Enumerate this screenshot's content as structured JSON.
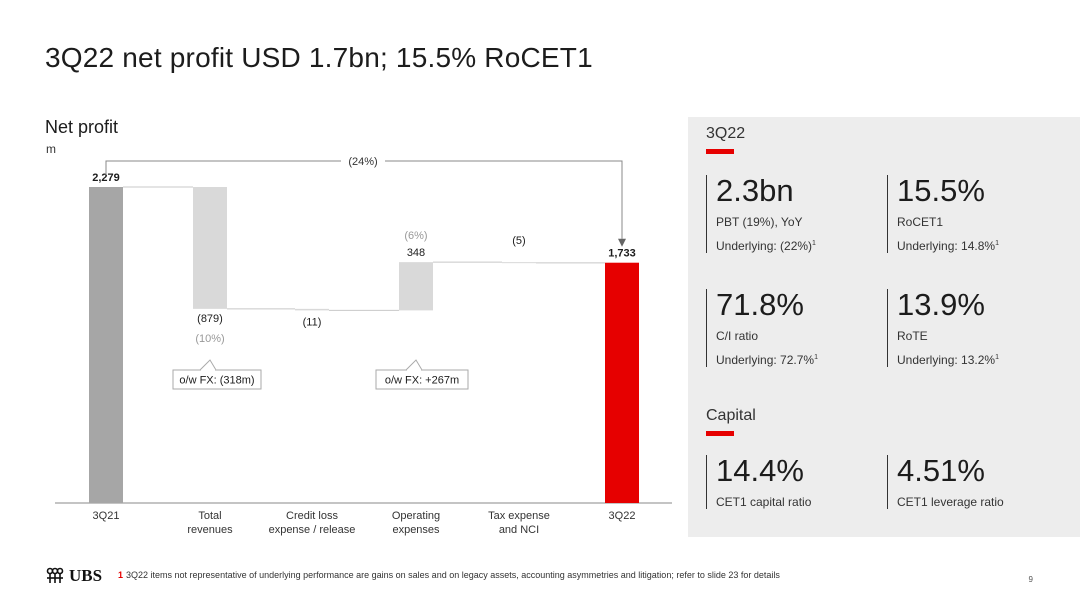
{
  "slide": {
    "title": "3Q22 net profit USD 1.7bn; 15.5% RoCET1",
    "page_number": "9",
    "logo_text": "UBS",
    "footnote_number": "1",
    "footnote_text": "3Q22 items not representative of underlying performance are gains on sales and on legacy assets, accounting asymmetries and litigation; refer to slide 23 for details"
  },
  "chart_data": {
    "type": "waterfall",
    "title": "Net profit",
    "unit": "m",
    "ylim": [
      0,
      2279
    ],
    "categories": [
      "3Q21",
      "Total revenues",
      "Credit loss expense / release",
      "Operating expenses",
      "Tax expense and NCI",
      "3Q22"
    ],
    "category_lines": [
      [
        "3Q21"
      ],
      [
        "Total",
        "revenues"
      ],
      [
        "Credit loss",
        "expense / release"
      ],
      [
        "Operating",
        "expenses"
      ],
      [
        "Tax expense",
        "and NCI"
      ],
      [
        "3Q22"
      ]
    ],
    "steps": [
      {
        "kind": "total",
        "value": 2279,
        "label": "2,279",
        "color": "#a6a6a6"
      },
      {
        "kind": "delta",
        "value": -879,
        "label": "(879)",
        "pct": "(10%)",
        "color": "#d9d9d9"
      },
      {
        "kind": "delta",
        "value": -11,
        "label": "(11)",
        "color": "#d9d9d9"
      },
      {
        "kind": "delta",
        "value": 348,
        "label": "348",
        "pct": "(6%)",
        "color": "#d9d9d9"
      },
      {
        "kind": "delta",
        "value": -5,
        "label": "(5)",
        "color": "#d9d9d9"
      },
      {
        "kind": "total",
        "value": 1733,
        "label": "1,733",
        "color": "#e60000"
      }
    ],
    "change_label": "(24%)",
    "callouts": [
      {
        "step": 1,
        "text": "o/w FX: (318m)"
      },
      {
        "step": 3,
        "text": "o/w FX: +267m"
      }
    ]
  },
  "panel": {
    "section1_title": "3Q22",
    "section2_title": "Capital",
    "accent": "#e60000",
    "kpis": [
      {
        "value": "2.3bn",
        "label": "PBT (19%), YoY",
        "sub": "Underlying: (22%)",
        "sup": "1"
      },
      {
        "value": "15.5%",
        "label": "RoCET1",
        "sub": "Underlying: 14.8%",
        "sup": "1"
      },
      {
        "value": "71.8%",
        "label": "C/I ratio",
        "sub": "Underlying: 72.7%",
        "sup": "1"
      },
      {
        "value": "13.9%",
        "label": "RoTE",
        "sub": "Underlying: 13.2%",
        "sup": "1"
      },
      {
        "value": "14.4%",
        "label": "CET1 capital ratio"
      },
      {
        "value": "4.51%",
        "label": "CET1 leverage ratio"
      }
    ]
  }
}
